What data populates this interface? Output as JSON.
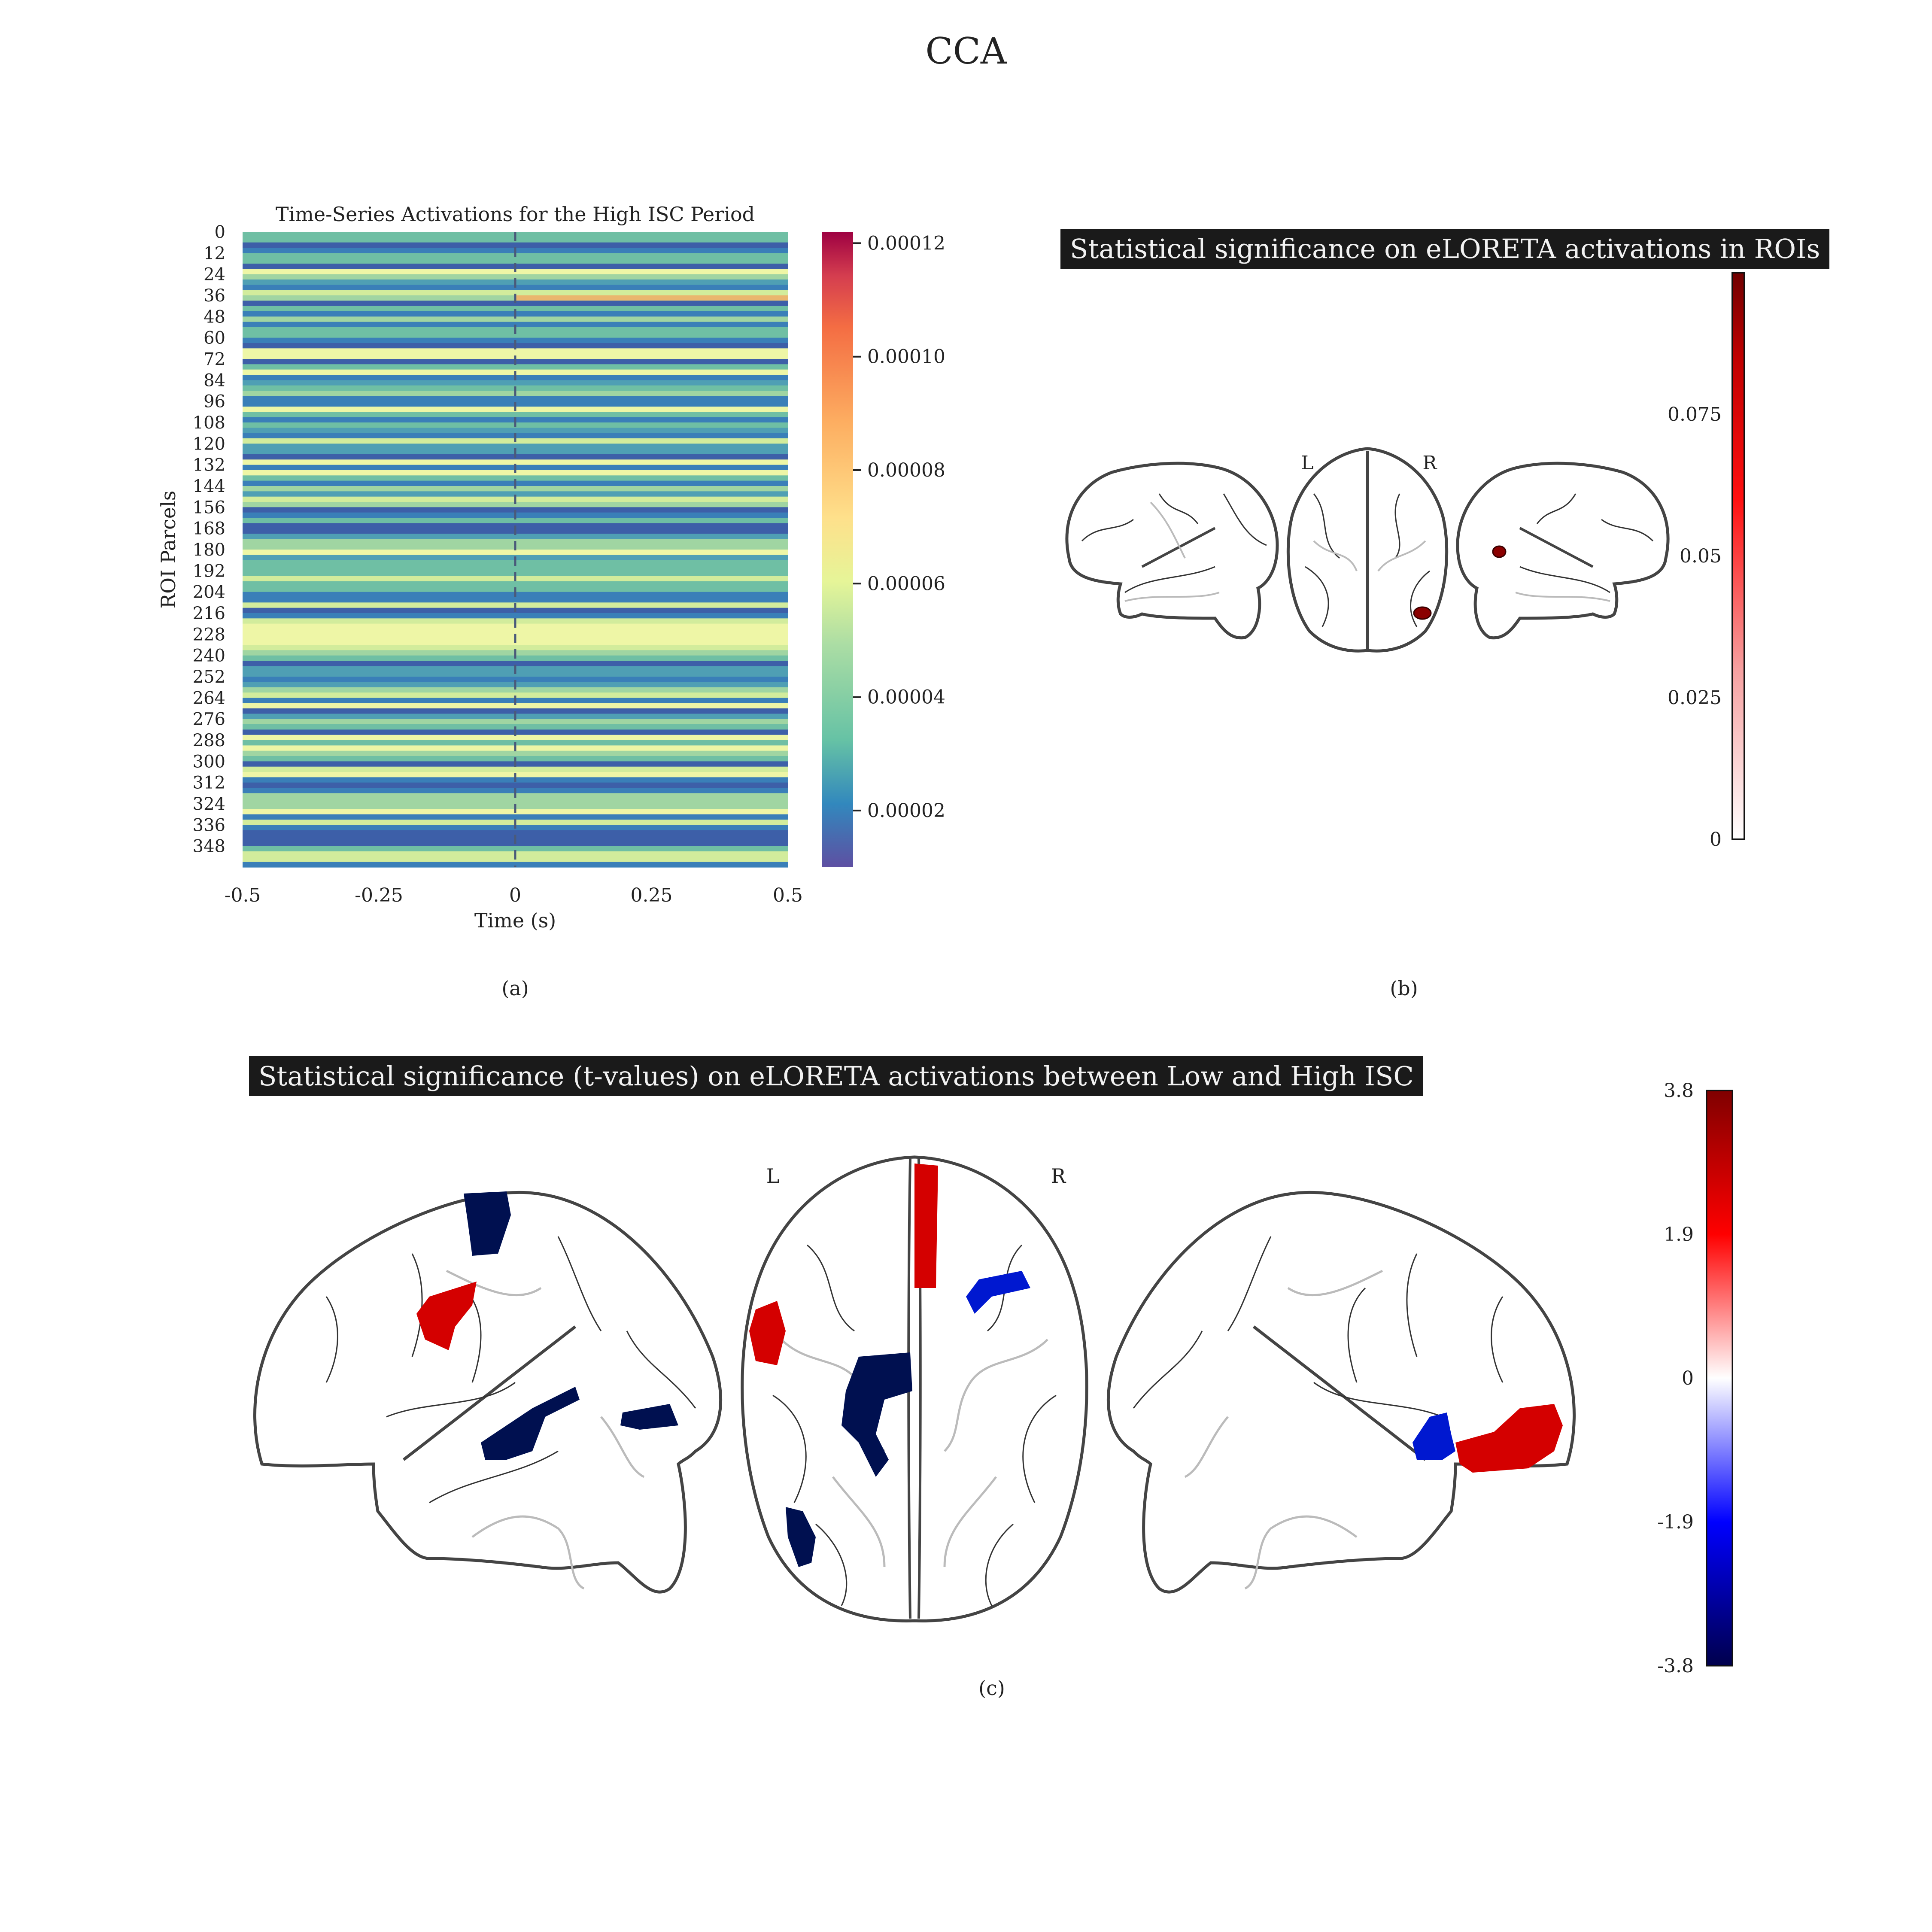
{
  "figure": {
    "title": "CCA",
    "captions": {
      "a": "(a)",
      "b": "(b)",
      "c": "(c)"
    }
  },
  "chart_data": [
    {
      "type": "heatmap",
      "panel": "(a)",
      "title": "Time-Series Activations for the High ISC Period",
      "xlabel": "Time (s)",
      "ylabel": "ROI Parcels",
      "x_ticks": [
        "-0.5",
        "-0.25",
        "0",
        "0.25",
        "0.5"
      ],
      "xlim": [
        -0.5,
        0.5
      ],
      "y_ticks": [
        "0",
        "12",
        "24",
        "36",
        "48",
        "60",
        "72",
        "84",
        "96",
        "108",
        "120",
        "132",
        "144",
        "156",
        "168",
        "180",
        "192",
        "204",
        "216",
        "228",
        "240",
        "252",
        "264",
        "276",
        "288",
        "300",
        "312",
        "324",
        "336",
        "348"
      ],
      "ylim": [
        0,
        360
      ],
      "colormap": "Spectral_r",
      "colorbar": {
        "range": [
          1e-05,
          0.000122
        ],
        "ticks": [
          "0.00002",
          "0.00004",
          "0.00006",
          "0.00008",
          "0.00010",
          "0.00012"
        ]
      },
      "marker_line": {
        "x": 0,
        "style": "dashed"
      }
    },
    {
      "type": "heatmap",
      "panel": "(b)",
      "title": "Statistical significance on eLORETA activations in ROIs",
      "views": [
        "sagittal-left",
        "axial",
        "sagittal-right"
      ],
      "orientation_labels": [
        "L",
        "R"
      ],
      "colormap": "Reds",
      "colorbar": {
        "range": [
          0,
          0.1
        ],
        "ticks": [
          "0",
          "0.025",
          "0.05",
          "0.075"
        ]
      }
    },
    {
      "type": "heatmap",
      "panel": "(c)",
      "title": "Statistical significance (t-values) on eLORETA activations between Low and High ISC",
      "views": [
        "sagittal-left",
        "axial",
        "sagittal-right"
      ],
      "orientation_labels": [
        "L",
        "R"
      ],
      "colormap": "seismic",
      "colorbar": {
        "range": [
          -3.8,
          3.8
        ],
        "ticks": [
          "3.8",
          "1.9",
          "0",
          "-1.9",
          "-3.8"
        ]
      }
    }
  ],
  "colors": {
    "banner_bg": "#1a1a1a",
    "banner_text": "#f2f2f2",
    "positive": "#d40000",
    "negative": "#001050",
    "negative_light": "#0018d0",
    "significance": "#8b0000"
  }
}
